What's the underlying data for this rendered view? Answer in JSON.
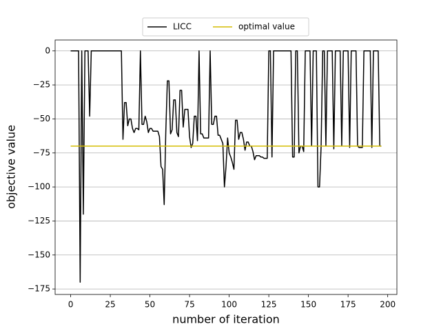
{
  "chart_data": {
    "type": "line",
    "xlabel": "number of iteration",
    "ylabel": "objective value",
    "xlim": [
      -9.8,
      205.8
    ],
    "ylim": [
      -179,
      8
    ],
    "xticks": [
      0,
      25,
      50,
      75,
      100,
      125,
      150,
      175,
      200
    ],
    "yticks": [
      0,
      {
        "value": -25,
        "label": "−25"
      },
      {
        "value": -50,
        "label": "−50"
      },
      {
        "value": -75,
        "label": "−75"
      },
      {
        "value": -100,
        "label": "−100"
      },
      {
        "value": -125,
        "label": "−125"
      },
      {
        "value": -150,
        "label": "−150"
      },
      {
        "value": -175,
        "label": "−175"
      }
    ],
    "grid": "y",
    "legend": "upper center",
    "series": [
      {
        "name": "LICC",
        "color": "#000000",
        "x": [
          0,
          1,
          2,
          3,
          4,
          5,
          6,
          7,
          8,
          9,
          10,
          11,
          12,
          13,
          14,
          15,
          16,
          17,
          18,
          19,
          20,
          21,
          22,
          23,
          24,
          25,
          26,
          27,
          28,
          29,
          30,
          31,
          32,
          33,
          34,
          35,
          36,
          37,
          38,
          39,
          40,
          41,
          42,
          43,
          44,
          45,
          46,
          47,
          48,
          49,
          50,
          51,
          52,
          53,
          54,
          55,
          56,
          57,
          58,
          59,
          60,
          61,
          62,
          63,
          64,
          65,
          66,
          67,
          68,
          69,
          70,
          71,
          72,
          73,
          74,
          75,
          76,
          77,
          78,
          79,
          80,
          81,
          82,
          83,
          84,
          85,
          86,
          87,
          88,
          89,
          90,
          91,
          92,
          93,
          94,
          95,
          96,
          97,
          98,
          99,
          100,
          101,
          102,
          103,
          104,
          105,
          106,
          107,
          108,
          109,
          110,
          111,
          112,
          113,
          114,
          115,
          116,
          117,
          118,
          119,
          120,
          121,
          122,
          123,
          124,
          125,
          126,
          127,
          128,
          129,
          130,
          131,
          132,
          133,
          134,
          135,
          136,
          137,
          138,
          139,
          140,
          141,
          142,
          143,
          144,
          145,
          146,
          147,
          148,
          149,
          150,
          151,
          152,
          153,
          154,
          155,
          156,
          157,
          158,
          159,
          160,
          161,
          162,
          163,
          164,
          165,
          166,
          167,
          168,
          169,
          170,
          171,
          172,
          173,
          174,
          175,
          176,
          177,
          178,
          179,
          180,
          181,
          182,
          183,
          184,
          185,
          186,
          187,
          188,
          189,
          190,
          191,
          192,
          193,
          194,
          195,
          196
        ],
        "values": [
          0,
          0,
          0,
          0,
          0,
          0,
          -170,
          0,
          -120,
          0,
          0,
          0,
          -48,
          0,
          0,
          0,
          0,
          0,
          0,
          0,
          0,
          0,
          0,
          0,
          0,
          0,
          0,
          0,
          0,
          0,
          0,
          0,
          0,
          -65,
          -38,
          -38,
          -55,
          -50,
          -50,
          -57,
          -60,
          -57,
          -57,
          -58,
          0,
          -54,
          -54,
          -48,
          -52,
          -60,
          -57,
          -57,
          -59,
          -59,
          -59,
          -59,
          -63,
          -85,
          -87,
          -113,
          -60,
          -22,
          -22,
          -61,
          -58,
          -36,
          -36,
          -60,
          -63,
          -29,
          -29,
          -56,
          -43,
          -43,
          -43,
          -63,
          -71,
          -68,
          -48,
          -48,
          -66,
          0,
          -61,
          -61,
          -64,
          -64,
          -64,
          -64,
          0,
          -54,
          -54,
          -48,
          -48,
          -62,
          -62,
          -65,
          -68,
          -100,
          -85,
          -64,
          -75,
          -78,
          -82,
          -87,
          -51,
          -51,
          -65,
          -60,
          -60,
          -65,
          -73,
          -67,
          -67,
          -70,
          -70,
          -74,
          -80,
          -77,
          -77,
          -77,
          -78,
          -78,
          -79,
          -79,
          -79,
          0,
          0,
          -78,
          0,
          0,
          0,
          0,
          0,
          0,
          0,
          0,
          0,
          0,
          0,
          0,
          -78,
          -78,
          0,
          0,
          -75,
          -70,
          -70,
          -74,
          0,
          0,
          0,
          0,
          -70,
          0,
          0,
          0,
          -100,
          -100,
          -70,
          0,
          0,
          -70,
          0,
          0,
          0,
          0,
          -72,
          0,
          0,
          0,
          0,
          -70,
          0,
          0,
          0,
          0,
          -71,
          0,
          0,
          0,
          0,
          -70,
          -71,
          -71,
          -71,
          0,
          0,
          0,
          0,
          0,
          -71,
          0,
          0,
          0,
          0,
          -70,
          -70
        ]
      },
      {
        "name": "optimal value",
        "color": "#d4bc00",
        "x": [
          0,
          196
        ],
        "values": [
          -70,
          -70
        ]
      }
    ]
  }
}
